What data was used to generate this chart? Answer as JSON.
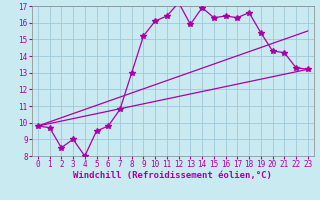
{
  "background_color": "#c8eaf0",
  "grid_color": "#a0c8d8",
  "line_color": "#aa00aa",
  "xlim": [
    -0.5,
    23.5
  ],
  "ylim": [
    8,
    17
  ],
  "xlabel": "Windchill (Refroidissement éolien,°C)",
  "xlabel_fontsize": 6.5,
  "xticks": [
    0,
    1,
    2,
    3,
    4,
    5,
    6,
    7,
    8,
    9,
    10,
    11,
    12,
    13,
    14,
    15,
    16,
    17,
    18,
    19,
    20,
    21,
    22,
    23
  ],
  "yticks": [
    8,
    9,
    10,
    11,
    12,
    13,
    14,
    15,
    16,
    17
  ],
  "tick_fontsize": 5.5,
  "curve_x": [
    0,
    1,
    2,
    3,
    4,
    5,
    6,
    7,
    8,
    9,
    10,
    11,
    12,
    13,
    14,
    15,
    16,
    17,
    18,
    19,
    20,
    21,
    22,
    23
  ],
  "curve_y": [
    9.8,
    9.7,
    8.5,
    9.0,
    8.0,
    9.5,
    9.8,
    10.8,
    13.0,
    15.2,
    16.1,
    16.4,
    17.2,
    15.9,
    16.9,
    16.3,
    16.4,
    16.3,
    16.6,
    15.4,
    14.3,
    14.2,
    13.3,
    13.2
  ],
  "line1_x": [
    0,
    23
  ],
  "line1_y": [
    9.8,
    13.2
  ],
  "line2_x": [
    0,
    23
  ],
  "line2_y": [
    9.8,
    15.5
  ]
}
